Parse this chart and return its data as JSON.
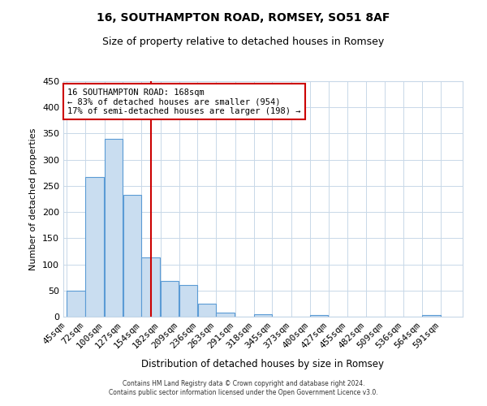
{
  "title": "16, SOUTHAMPTON ROAD, ROMSEY, SO51 8AF",
  "subtitle": "Size of property relative to detached houses in Romsey",
  "xlabel": "Distribution of detached houses by size in Romsey",
  "ylabel": "Number of detached properties",
  "bar_left_edges": [
    45,
    72,
    100,
    127,
    154,
    182,
    209,
    236,
    263,
    291,
    318,
    345,
    373,
    400,
    427,
    455,
    482,
    509,
    536,
    564
  ],
  "bar_heights": [
    50,
    267,
    340,
    232,
    113,
    68,
    61,
    25,
    7,
    0,
    5,
    0,
    0,
    3,
    0,
    0,
    0,
    0,
    0,
    3
  ],
  "bin_width": 27,
  "bar_color": "#c9ddf0",
  "bar_edge_color": "#5b9bd5",
  "tick_labels": [
    "45sqm",
    "72sqm",
    "100sqm",
    "127sqm",
    "154sqm",
    "182sqm",
    "209sqm",
    "236sqm",
    "263sqm",
    "291sqm",
    "318sqm",
    "345sqm",
    "373sqm",
    "400sqm",
    "427sqm",
    "455sqm",
    "482sqm",
    "509sqm",
    "536sqm",
    "564sqm",
    "591sqm"
  ],
  "ylim": [
    0,
    450
  ],
  "yticks": [
    0,
    50,
    100,
    150,
    200,
    250,
    300,
    350,
    400,
    450
  ],
  "property_size": 168,
  "vline_color": "#cc0000",
  "annotation_title": "16 SOUTHAMPTON ROAD: 168sqm",
  "annotation_line1": "← 83% of detached houses are smaller (954)",
  "annotation_line2": "17% of semi-detached houses are larger (198) →",
  "annotation_box_color": "#ffffff",
  "annotation_box_edge": "#cc0000",
  "footer_line1": "Contains HM Land Registry data © Crown copyright and database right 2024.",
  "footer_line2": "Contains public sector information licensed under the Open Government Licence v3.0.",
  "background_color": "#ffffff",
  "grid_color": "#c8d8e8"
}
